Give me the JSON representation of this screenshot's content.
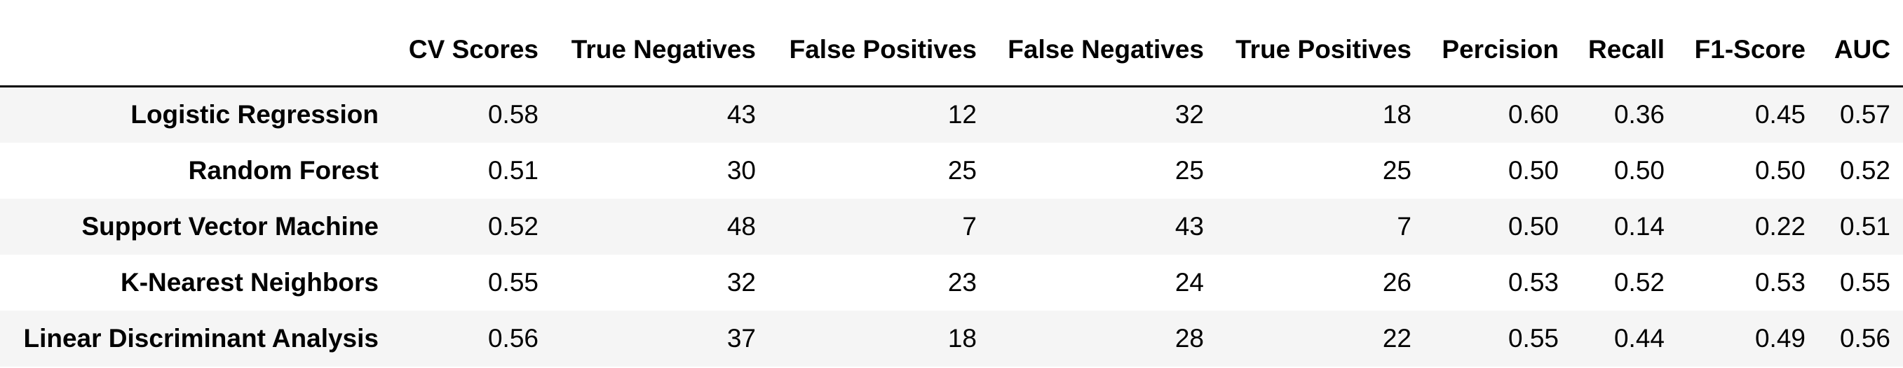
{
  "table": {
    "columns": [
      "",
      "CV Scores",
      "True Negatives",
      "False Positives",
      "False Negatives",
      "True Positives",
      "Percision",
      "Recall",
      "F1-Score",
      "AUC"
    ],
    "rows": [
      {
        "label": "Logistic Regression",
        "values": [
          "0.58",
          "43",
          "12",
          "32",
          "18",
          "0.60",
          "0.36",
          "0.45",
          "0.57"
        ]
      },
      {
        "label": "Random Forest",
        "values": [
          "0.51",
          "30",
          "25",
          "25",
          "25",
          "0.50",
          "0.50",
          "0.50",
          "0.52"
        ]
      },
      {
        "label": "Support Vector Machine",
        "values": [
          "0.52",
          "48",
          "7",
          "43",
          "7",
          "0.50",
          "0.14",
          "0.22",
          "0.51"
        ]
      },
      {
        "label": "K-Nearest Neighbors",
        "values": [
          "0.55",
          "32",
          "23",
          "24",
          "26",
          "0.53",
          "0.52",
          "0.53",
          "0.55"
        ]
      },
      {
        "label": "Linear Discriminant Analysis",
        "values": [
          "0.56",
          "37",
          "18",
          "28",
          "22",
          "0.55",
          "0.44",
          "0.49",
          "0.56"
        ]
      }
    ]
  }
}
